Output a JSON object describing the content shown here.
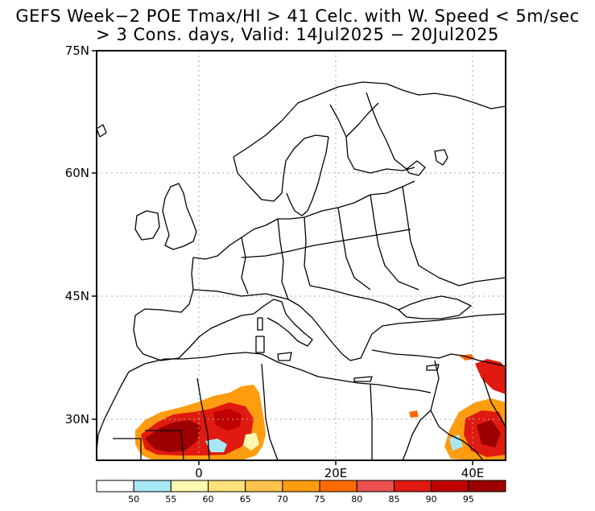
{
  "title_line1": "GEFS Week−2 POE Tmax/HI > 41 Celc. with W. Speed < 5m/sec",
  "title_line2": "> 3 Cons. days, Valid: 14Jul2025 − 20Jul2025",
  "lat_labels": [
    "75N",
    "60N",
    "45N",
    "30N"
  ],
  "lon_labels": [
    "0",
    "20E",
    "40E"
  ],
  "colorbar": {
    "colors": [
      "#ffffff",
      "#a8e8f5",
      "#fff8b0",
      "#ffe27a",
      "#ffc24a",
      "#ff9c10",
      "#ff6a00",
      "#ec5050",
      "#e01a10",
      "#c00000",
      "#9c0000"
    ],
    "labels": [
      "50",
      "55",
      "60",
      "65",
      "70",
      "75",
      "80",
      "85",
      "90",
      "95"
    ]
  }
}
